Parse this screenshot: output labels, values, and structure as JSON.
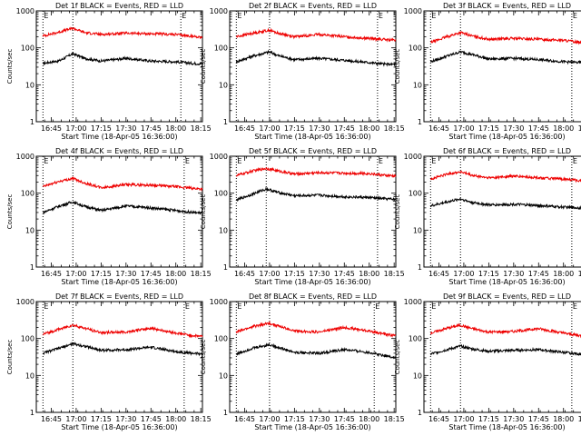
{
  "figure": {
    "xlabel": "Start Time (18-Apr-05 16:36:00)",
    "ylabel": "Counts/sec",
    "xticks": [
      "16:45",
      "17:00",
      "17:15",
      "17:30",
      "17:45",
      "18:00",
      "18:15"
    ],
    "yticks": [
      "1",
      "10",
      "100",
      "1000"
    ],
    "marker_text": "E",
    "colors": {
      "events": "#000000",
      "lld": "#ee0000",
      "axes": "#000000",
      "background": "#ffffff"
    }
  },
  "chart_data": [
    {
      "type": "line",
      "title": "Det 1f BLACK = Events, RED = LLD",
      "xlim": [
        "16:36",
        "18:16"
      ],
      "ylim": [
        1,
        1000
      ],
      "yscale": "log",
      "markers": [
        "16:40",
        "16:58",
        "18:03",
        "18:16"
      ],
      "series": [
        {
          "name": "Events",
          "color": "#000000",
          "x": [
            "16:40",
            "16:50",
            "16:58",
            "17:05",
            "17:15",
            "17:30",
            "17:45",
            "18:00",
            "18:10",
            "18:16"
          ],
          "y": [
            38,
            45,
            70,
            52,
            44,
            52,
            44,
            42,
            38,
            37
          ]
        },
        {
          "name": "LLD",
          "color": "#ee0000",
          "x": [
            "16:40",
            "16:50",
            "16:58",
            "17:05",
            "17:15",
            "17:30",
            "17:45",
            "18:00",
            "18:10",
            "18:16"
          ],
          "y": [
            210,
            270,
            340,
            260,
            230,
            250,
            240,
            230,
            205,
            195
          ]
        }
      ]
    },
    {
      "type": "line",
      "title": "Det 2f BLACK = Events, RED = LLD",
      "xlim": [
        "16:36",
        "18:16"
      ],
      "ylim": [
        1,
        1000
      ],
      "yscale": "log",
      "markers": [
        "16:40",
        "17:00",
        "18:05",
        "18:16"
      ],
      "series": [
        {
          "name": "Events",
          "color": "#000000",
          "x": [
            "16:40",
            "16:50",
            "17:00",
            "17:05",
            "17:15",
            "17:30",
            "17:45",
            "18:00",
            "18:10",
            "18:16"
          ],
          "y": [
            42,
            60,
            78,
            62,
            48,
            52,
            46,
            40,
            36,
            36
          ]
        },
        {
          "name": "LLD",
          "color": "#ee0000",
          "x": [
            "16:40",
            "16:50",
            "17:00",
            "17:05",
            "17:15",
            "17:30",
            "17:45",
            "18:00",
            "18:10",
            "18:16"
          ],
          "y": [
            200,
            250,
            300,
            250,
            200,
            230,
            200,
            180,
            165,
            160
          ]
        }
      ]
    },
    {
      "type": "line",
      "title": "Det 3f BLACK = Events, RED = LLD",
      "xlim": [
        "16:36",
        "18:16"
      ],
      "ylim": [
        1,
        1000
      ],
      "yscale": "log",
      "markers": [
        "16:40",
        "16:58",
        "18:05",
        "18:16"
      ],
      "series": [
        {
          "name": "Events",
          "color": "#000000",
          "x": [
            "16:40",
            "16:50",
            "16:58",
            "17:05",
            "17:15",
            "17:30",
            "17:45",
            "18:00",
            "18:10",
            "18:16"
          ],
          "y": [
            42,
            60,
            78,
            66,
            50,
            52,
            48,
            42,
            40,
            36
          ]
        },
        {
          "name": "LLD",
          "color": "#ee0000",
          "x": [
            "16:40",
            "16:50",
            "16:58",
            "17:05",
            "17:15",
            "17:30",
            "17:45",
            "18:00",
            "18:10",
            "18:16"
          ],
          "y": [
            140,
            200,
            260,
            210,
            170,
            180,
            170,
            160,
            140,
            130
          ]
        }
      ]
    },
    {
      "type": "line",
      "title": "Det 4f BLACK = Events, RED = LLD",
      "xlim": [
        "16:36",
        "18:16"
      ],
      "ylim": [
        1,
        1000
      ],
      "yscale": "log",
      "markers": [
        "16:40",
        "16:58",
        "18:05",
        "18:16"
      ],
      "series": [
        {
          "name": "Events",
          "color": "#000000",
          "x": [
            "16:40",
            "16:50",
            "16:58",
            "17:05",
            "17:15",
            "17:30",
            "17:45",
            "18:00",
            "18:10",
            "18:16"
          ],
          "y": [
            30,
            45,
            58,
            44,
            34,
            45,
            40,
            34,
            30,
            29
          ]
        },
        {
          "name": "LLD",
          "color": "#ee0000",
          "x": [
            "16:40",
            "16:50",
            "16:58",
            "17:05",
            "17:15",
            "17:30",
            "17:45",
            "18:00",
            "18:10",
            "18:16"
          ],
          "y": [
            150,
            210,
            250,
            190,
            140,
            170,
            165,
            150,
            135,
            130
          ]
        }
      ]
    },
    {
      "type": "line",
      "title": "Det 5f BLACK = Events, RED = LLD",
      "xlim": [
        "16:36",
        "18:16"
      ],
      "ylim": [
        1,
        1000
      ],
      "yscale": "log",
      "markers": [
        "16:40",
        "16:58",
        "18:05",
        "18:16"
      ],
      "series": [
        {
          "name": "Events",
          "color": "#000000",
          "x": [
            "16:40",
            "16:50",
            "16:58",
            "17:05",
            "17:15",
            "17:30",
            "17:45",
            "18:00",
            "18:10",
            "18:16"
          ],
          "y": [
            65,
            95,
            130,
            105,
            85,
            88,
            80,
            76,
            70,
            68
          ]
        },
        {
          "name": "LLD",
          "color": "#ee0000",
          "x": [
            "16:40",
            "16:50",
            "16:58",
            "17:05",
            "17:15",
            "17:30",
            "17:45",
            "18:00",
            "18:10",
            "18:16"
          ],
          "y": [
            300,
            400,
            470,
            400,
            330,
            360,
            350,
            340,
            300,
            290
          ]
        }
      ]
    },
    {
      "type": "line",
      "title": "Det 6f BLACK = Events, RED = LLD",
      "xlim": [
        "16:36",
        "18:16"
      ],
      "ylim": [
        1,
        1000
      ],
      "yscale": "log",
      "markers": [
        "16:40",
        "16:58",
        "18:05",
        "18:16"
      ],
      "series": [
        {
          "name": "Events",
          "color": "#000000",
          "x": [
            "16:40",
            "16:50",
            "16:58",
            "17:05",
            "17:15",
            "17:30",
            "17:45",
            "18:00",
            "18:10",
            "18:16"
          ],
          "y": [
            45,
            58,
            70,
            56,
            48,
            50,
            46,
            42,
            40,
            38
          ]
        },
        {
          "name": "LLD",
          "color": "#ee0000",
          "x": [
            "16:40",
            "16:50",
            "16:58",
            "17:05",
            "17:15",
            "17:30",
            "17:45",
            "18:00",
            "18:10",
            "18:16"
          ],
          "y": [
            240,
            330,
            380,
            300,
            260,
            290,
            260,
            240,
            220,
            215
          ]
        }
      ]
    },
    {
      "type": "line",
      "title": "Det 7f BLACK = Events, RED = LLD",
      "xlim": [
        "16:36",
        "18:16"
      ],
      "ylim": [
        1,
        1000
      ],
      "yscale": "log",
      "markers": [
        "16:40",
        "16:58",
        "18:05",
        "18:16"
      ],
      "series": [
        {
          "name": "Events",
          "color": "#000000",
          "x": [
            "16:40",
            "16:50",
            "16:58",
            "17:05",
            "17:15",
            "17:30",
            "17:45",
            "18:00",
            "18:10",
            "18:16"
          ],
          "y": [
            40,
            55,
            72,
            62,
            48,
            50,
            58,
            44,
            40,
            38
          ]
        },
        {
          "name": "LLD",
          "color": "#ee0000",
          "x": [
            "16:40",
            "16:50",
            "16:58",
            "17:05",
            "17:15",
            "17:30",
            "17:45",
            "18:00",
            "18:10",
            "18:16"
          ],
          "y": [
            130,
            180,
            230,
            190,
            145,
            150,
            190,
            140,
            120,
            115
          ]
        }
      ]
    },
    {
      "type": "line",
      "title": "Det 8f BLACK = Events, RED = LLD",
      "xlim": [
        "16:36",
        "18:16"
      ],
      "ylim": [
        1,
        1000
      ],
      "yscale": "log",
      "markers": [
        "16:40",
        "17:00",
        "18:03",
        "18:16"
      ],
      "series": [
        {
          "name": "Events",
          "color": "#000000",
          "x": [
            "16:40",
            "16:50",
            "17:00",
            "17:05",
            "17:15",
            "17:30",
            "17:45",
            "18:00",
            "18:10",
            "18:16"
          ],
          "y": [
            38,
            55,
            68,
            58,
            42,
            40,
            50,
            42,
            34,
            30
          ]
        },
        {
          "name": "LLD",
          "color": "#ee0000",
          "x": [
            "16:40",
            "16:50",
            "17:00",
            "17:05",
            "17:15",
            "17:30",
            "17:45",
            "18:00",
            "18:10",
            "18:16"
          ],
          "y": [
            150,
            210,
            260,
            220,
            160,
            150,
            200,
            160,
            130,
            120
          ]
        }
      ]
    },
    {
      "type": "line",
      "title": "Det 9f BLACK = Events, RED = LLD",
      "xlim": [
        "16:36",
        "18:16"
      ],
      "ylim": [
        1,
        1000
      ],
      "yscale": "log",
      "markers": [
        "16:40",
        "16:58",
        "18:05",
        "18:16"
      ],
      "series": [
        {
          "name": "Events",
          "color": "#000000",
          "x": [
            "16:40",
            "16:50",
            "16:58",
            "17:05",
            "17:15",
            "17:30",
            "17:45",
            "18:00",
            "18:10",
            "18:16"
          ],
          "y": [
            38,
            50,
            62,
            52,
            45,
            48,
            50,
            42,
            38,
            36
          ]
        },
        {
          "name": "LLD",
          "color": "#ee0000",
          "x": [
            "16:40",
            "16:50",
            "16:58",
            "17:05",
            "17:15",
            "17:30",
            "17:45",
            "18:00",
            "18:10",
            "18:16"
          ],
          "y": [
            140,
            190,
            230,
            185,
            150,
            155,
            185,
            140,
            120,
            115
          ]
        }
      ]
    }
  ]
}
